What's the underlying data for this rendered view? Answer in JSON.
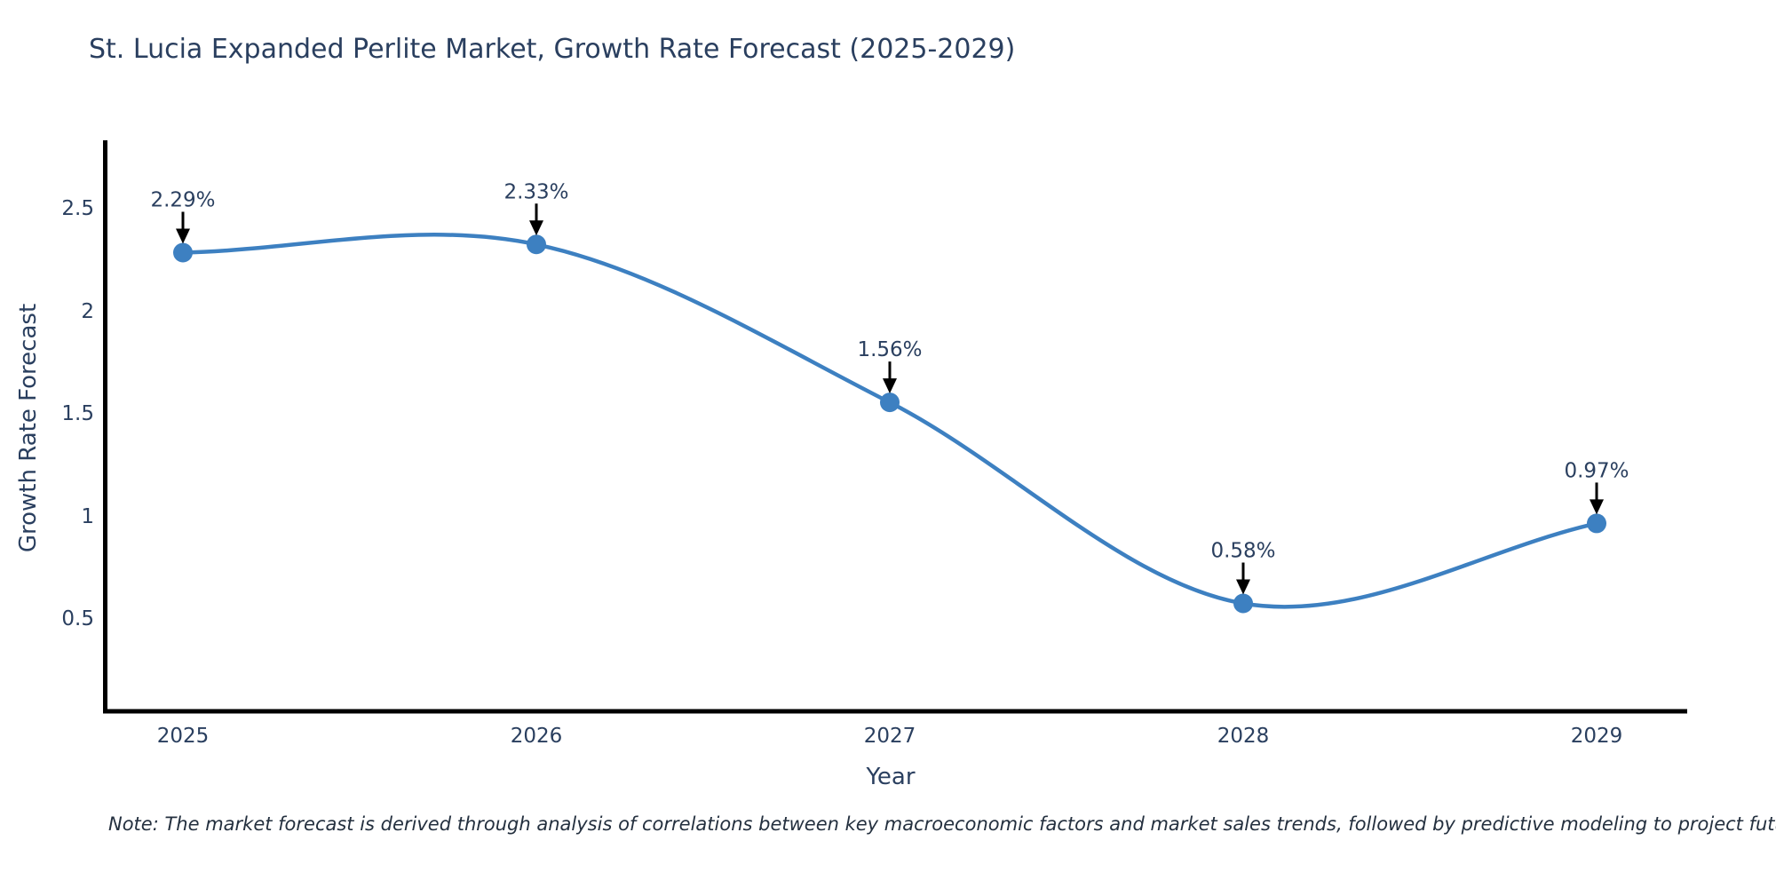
{
  "title": "St. Lucia Expanded Perlite Market, Growth Rate Forecast (2025-2029)",
  "note": "Note: The market forecast is derived through analysis of correlations between key macroeconomic factors and market sales trends, followed by predictive modeling to project future sales",
  "chart_data": {
    "type": "line",
    "line_shape": "spline",
    "title": "St. Lucia Expanded Perlite Market, Growth Rate Forecast (2025-2029)",
    "xlabel": "Year",
    "ylabel": "Growth Rate Forecast",
    "categories": [
      "2025",
      "2026",
      "2027",
      "2028",
      "2029"
    ],
    "x": [
      2025,
      2026,
      2027,
      2028,
      2029
    ],
    "values": [
      2.29,
      2.33,
      1.56,
      0.58,
      0.97
    ],
    "point_labels": [
      "2.29%",
      "2.33%",
      "1.56%",
      "0.58%",
      "0.97%"
    ],
    "y_ticks": [
      2.5,
      2,
      1.5,
      1,
      0.5
    ],
    "y_tick_labels": [
      "2.5",
      "2",
      "1.5",
      "1",
      "0.5"
    ],
    "ylim": [
      0.06,
      2.83
    ],
    "xlim": [
      2024.78,
      2029.26
    ],
    "grid": false,
    "legend_position": "none",
    "markers": true,
    "annotations_with_arrows": true,
    "colors": {
      "line": "#3d80c1",
      "marker": "#3d80c1",
      "arrow": "#000000",
      "axis_line": "#000000",
      "text": "#2a3f5f",
      "background": "#ffffff"
    }
  }
}
